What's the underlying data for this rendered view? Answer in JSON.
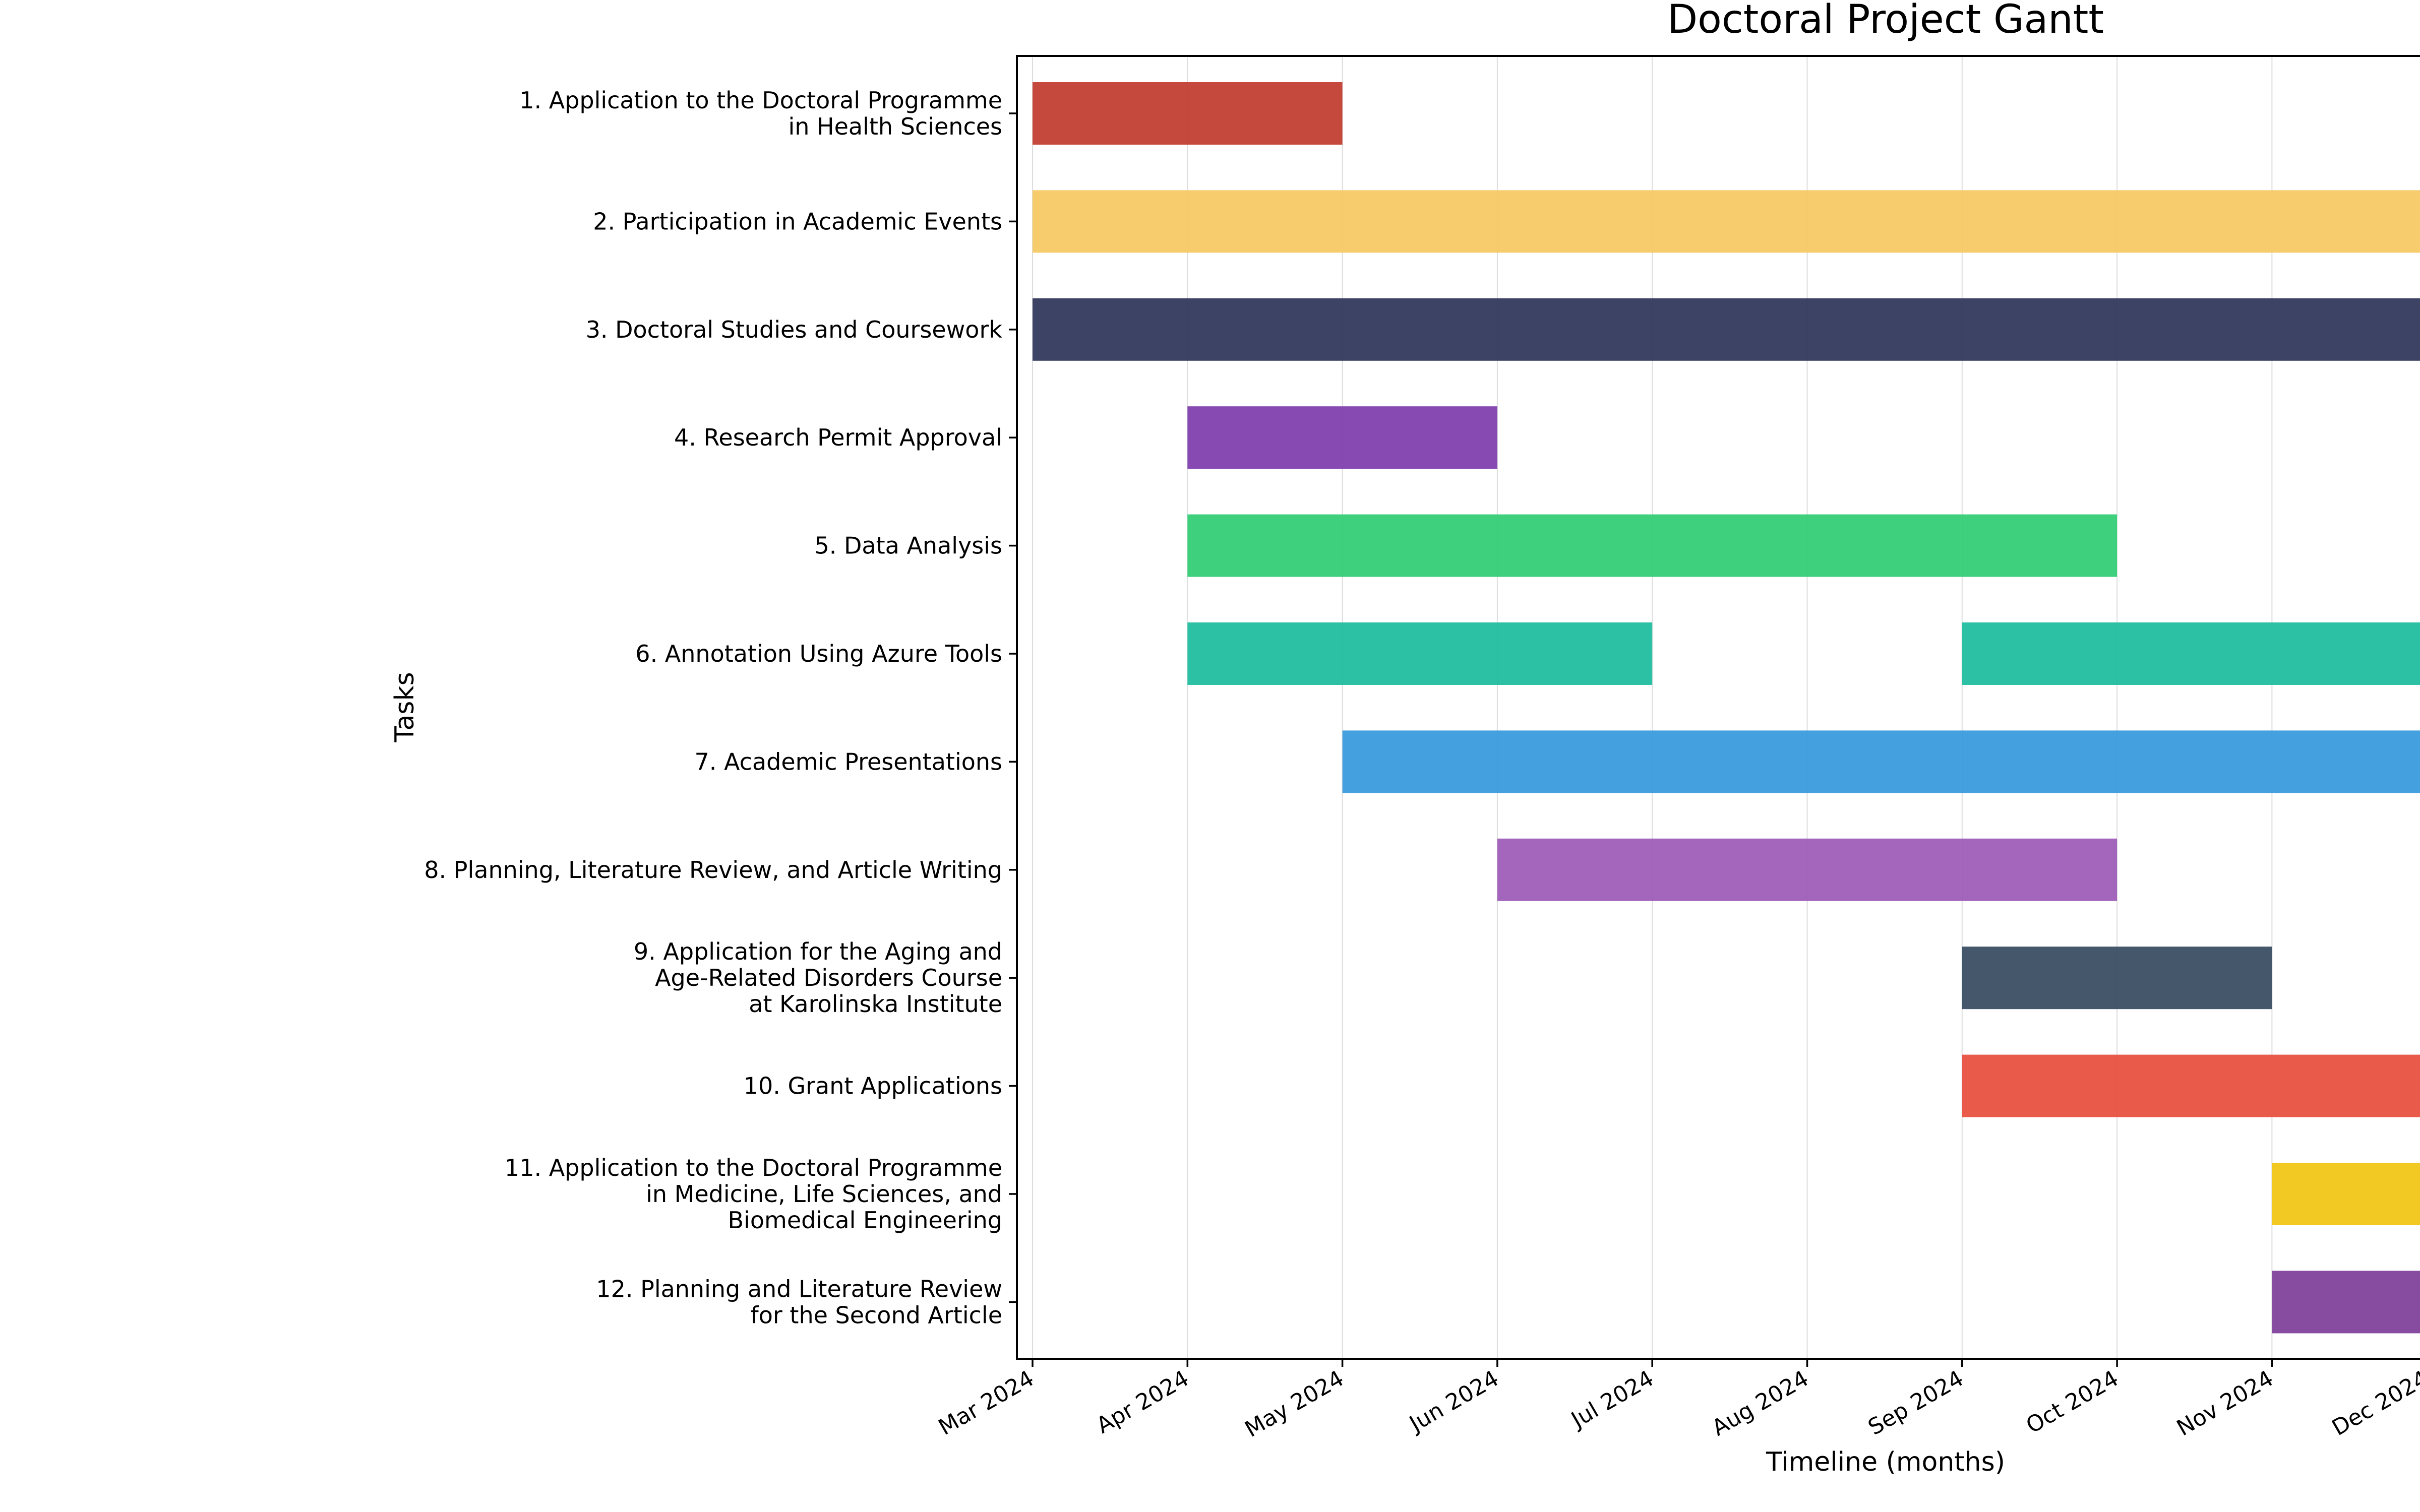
{
  "chart_data": {
    "type": "gantt",
    "title": "Doctoral Project Gantt",
    "xlabel": "Timeline (months)",
    "ylabel": "Tasks",
    "x_ticks": [
      "Mar 2024",
      "Apr 2024",
      "May 2024",
      "Jun 2024",
      "Jul 2024",
      "Aug 2024",
      "Sep 2024",
      "Oct 2024",
      "Nov 2024",
      "Dec 2024"
    ],
    "xlim_months": [
      0,
      9
    ],
    "grid": "vertical",
    "tasks": [
      {
        "label": [
          "1. Application to the Doctoral Programme",
          "in Health Sciences"
        ],
        "color": "#c0392b",
        "segments": [
          [
            0,
            2
          ]
        ]
      },
      {
        "label": [
          "2. Participation in Academic Events"
        ],
        "color": "#f6c85f",
        "segments": [
          [
            0,
            9
          ]
        ]
      },
      {
        "label": [
          "3. Doctoral Studies and Coursework"
        ],
        "color": "#2c3357",
        "segments": [
          [
            0,
            9
          ]
        ]
      },
      {
        "label": [
          "4. Research Permit Approval"
        ],
        "color": "#7d3aab",
        "segments": [
          [
            1,
            3
          ]
        ]
      },
      {
        "label": [
          "5. Data Analysis"
        ],
        "color": "#2ecc71",
        "segments": [
          [
            1,
            7
          ]
        ]
      },
      {
        "label": [
          "6. Annotation Using Azure Tools"
        ],
        "color": "#1abc9c",
        "segments": [
          [
            1,
            4
          ],
          [
            6,
            9
          ]
        ]
      },
      {
        "label": [
          "7. Academic Presentations"
        ],
        "color": "#3498db",
        "segments": [
          [
            2,
            9
          ]
        ]
      },
      {
        "label": [
          "8. Planning, Literature Review, and Article Writing"
        ],
        "color": "#9b59b6",
        "segments": [
          [
            3,
            7
          ]
        ]
      },
      {
        "label": [
          "9. Application for the Aging and",
          "Age-Related Disorders Course",
          "at Karolinska Institute"
        ],
        "color": "#34495e",
        "segments": [
          [
            6,
            8
          ]
        ]
      },
      {
        "label": [
          "10. Grant Applications"
        ],
        "color": "#e74c3c",
        "segments": [
          [
            6,
            9
          ]
        ]
      },
      {
        "label": [
          "11. Application to the Doctoral Programme",
          "in Medicine, Life Sciences, and",
          "Biomedical Engineering"
        ],
        "color": "#f1c40f",
        "segments": [
          [
            8,
            9
          ]
        ]
      },
      {
        "label": [
          "12. Planning and Literature Review",
          "for the Second Article"
        ],
        "color": "#7d3c98",
        "segments": [
          [
            8,
            9
          ]
        ]
      }
    ]
  }
}
